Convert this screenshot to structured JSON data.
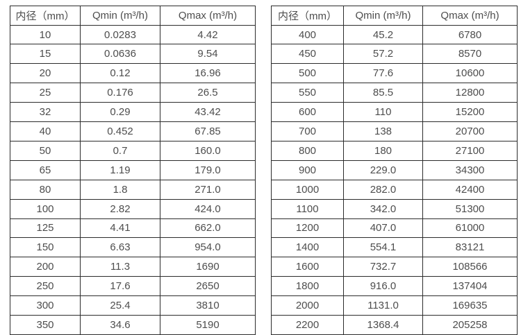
{
  "chart_data": [
    {
      "type": "table",
      "title": "",
      "headers": [
        "内径（mm）",
        "Qmin (m³/h)",
        "Qmax (m³/h)"
      ],
      "rows": [
        [
          "10",
          "0.0283",
          "4.42"
        ],
        [
          "15",
          "0.0636",
          "9.54"
        ],
        [
          "20",
          "0.12",
          "16.96"
        ],
        [
          "25",
          "0.176",
          "26.5"
        ],
        [
          "32",
          "0.29",
          "43.42"
        ],
        [
          "40",
          "0.452",
          "67.85"
        ],
        [
          "50",
          "0.7",
          "160.0"
        ],
        [
          "65",
          "1.19",
          "179.0"
        ],
        [
          "80",
          "1.8",
          "271.0"
        ],
        [
          "100",
          "2.82",
          "424.0"
        ],
        [
          "125",
          "4.41",
          "662.0"
        ],
        [
          "150",
          "6.63",
          "954.0"
        ],
        [
          "200",
          "11.3",
          "1690"
        ],
        [
          "250",
          "17.6",
          "2650"
        ],
        [
          "300",
          "25.4",
          "3810"
        ],
        [
          "350",
          "34.6",
          "5190"
        ]
      ]
    },
    {
      "type": "table",
      "title": "",
      "headers": [
        "内径（mm）",
        "Qmin (m³/h)",
        "Qmax (m³/h)"
      ],
      "rows": [
        [
          "400",
          "45.2",
          "6780"
        ],
        [
          "450",
          "57.2",
          "8570"
        ],
        [
          "500",
          "77.6",
          "10600"
        ],
        [
          "550",
          "85.5",
          "12800"
        ],
        [
          "600",
          "110",
          "15200"
        ],
        [
          "700",
          "138",
          "20700"
        ],
        [
          "800",
          "180",
          "27100"
        ],
        [
          "900",
          "229.0",
          "34300"
        ],
        [
          "1000",
          "282.0",
          "42400"
        ],
        [
          "1100",
          "342.0",
          "51300"
        ],
        [
          "1200",
          "407.0",
          "61000"
        ],
        [
          "1400",
          "554.1",
          "83121"
        ],
        [
          "1600",
          "732.7",
          "108566"
        ],
        [
          "1800",
          "916.0",
          "137404"
        ],
        [
          "2000",
          "1131.0",
          "169635"
        ],
        [
          "2200",
          "1368.4",
          "205258"
        ]
      ]
    }
  ],
  "colors": {
    "table_border": "#2b2b2b",
    "table_text": "#4d4d4d",
    "background": "#ffffff"
  }
}
